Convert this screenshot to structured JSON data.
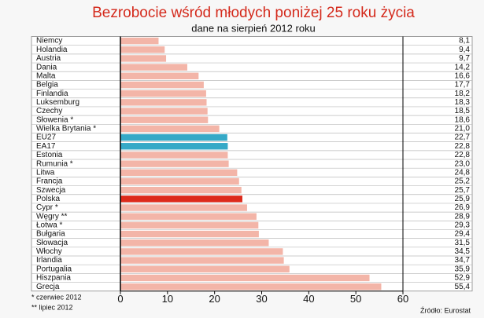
{
  "chart_data": {
    "type": "bar",
    "orientation": "horizontal",
    "title": "Bezrobocie wśród młodych poniżej 25 roku życia",
    "subtitle": "dane na sierpień 2012 roku",
    "categories": [
      "Niemcy",
      "Holandia",
      "Austria",
      "Dania",
      "Malta",
      "Belgia",
      "Finlandia",
      "Luksemburg",
      "Czechy",
      "Słowenia *",
      "Wielka Brytania *",
      "EU27",
      "EA17",
      "Estonia",
      "Rumunia *",
      "Litwa",
      "Francja",
      "Szwecja",
      "Polska",
      "Cypr *",
      "Węgry **",
      "Łotwa *",
      "Bułgaria",
      "Słowacja",
      "Włochy",
      "Irlandia",
      "Portugalia",
      "Hiszpania",
      "Grecja"
    ],
    "values": [
      8.1,
      9.4,
      9.7,
      14.2,
      16.6,
      17.7,
      18.2,
      18.3,
      18.5,
      18.6,
      21.0,
      22.7,
      22.8,
      22.8,
      23.0,
      24.8,
      25.2,
      25.7,
      25.9,
      26.9,
      28.9,
      29.3,
      29.4,
      31.5,
      34.5,
      34.7,
      35.9,
      52.9,
      55.4
    ],
    "value_labels": [
      "8,1",
      "9,4",
      "9,7",
      "14,2",
      "16,6",
      "17,7",
      "18,2",
      "18,3",
      "18,5",
      "18,6",
      "21,0",
      "22,7",
      "22,8",
      "22,8",
      "23,0",
      "24,8",
      "25,2",
      "25,7",
      "25,9",
      "26,9",
      "28,9",
      "29,3",
      "29,4",
      "31,5",
      "34,5",
      "34,7",
      "35,9",
      "52,9",
      "55,4"
    ],
    "colors": [
      "#f3b5a8",
      "#f3b5a8",
      "#f3b5a8",
      "#f3b5a8",
      "#f3b5a8",
      "#f3b5a8",
      "#f3b5a8",
      "#f3b5a8",
      "#f3b5a8",
      "#f3b5a8",
      "#f3b5a8",
      "#35a9c7",
      "#35a9c7",
      "#f3b5a8",
      "#f3b5a8",
      "#f3b5a8",
      "#f3b5a8",
      "#f3b5a8",
      "#dd2a1b",
      "#f3b5a8",
      "#f3b5a8",
      "#f3b5a8",
      "#f3b5a8",
      "#f3b5a8",
      "#f3b5a8",
      "#f3b5a8",
      "#f3b5a8",
      "#f3b5a8",
      "#f3b5a8"
    ],
    "xlim": [
      0,
      60
    ],
    "xticks": [
      0,
      10,
      20,
      30,
      40,
      50,
      60
    ],
    "footnotes": [
      "* czerwiec 2012",
      "** lipiec 2012"
    ],
    "source": "Źródło: Eurostat"
  }
}
